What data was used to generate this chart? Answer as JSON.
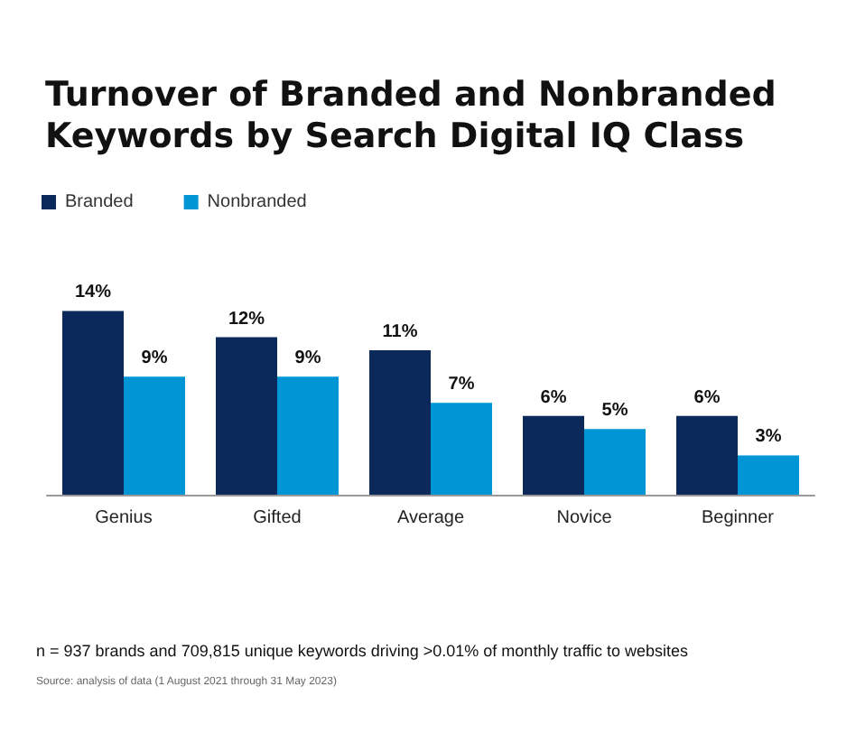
{
  "chart_data": {
    "type": "bar",
    "title": "Turnover of Branded and Nonbranded\nKeywords by Search Digital IQ Class",
    "categories": [
      "Genius",
      "Gifted",
      "Average",
      "Novice",
      "Beginner"
    ],
    "series": [
      {
        "name": "Branded",
        "color": "#0b2a5b",
        "values": [
          14,
          12,
          11,
          6,
          6
        ],
        "value_labels": [
          "14%",
          "12%",
          "11%",
          "6%",
          "6%"
        ]
      },
      {
        "name": "Nonbranded",
        "color": "#0096d6",
        "values": [
          9,
          9,
          7,
          5,
          3
        ],
        "value_labels": [
          "9%",
          "9%",
          "7%",
          "5%",
          "3%"
        ]
      }
    ],
    "legend": "top left",
    "annotations": [
      "n = 937 brands and 709,815 unique keywords driving >0.01% of monthly traffic to websites",
      "Source: analysis of data (1 August 2021 through 31 May 2023)"
    ]
  }
}
